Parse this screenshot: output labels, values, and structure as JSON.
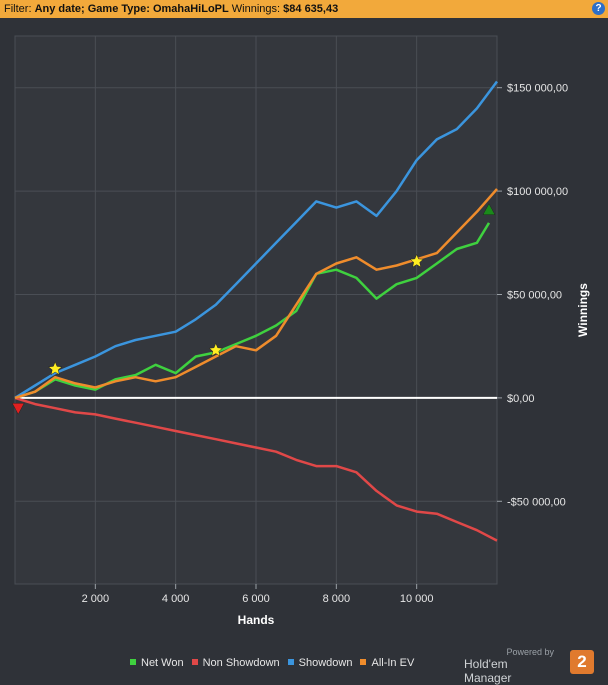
{
  "filter": {
    "label": "Filter:",
    "value": "Any date; Game Type: OmahaHiLoPL",
    "winnings_label": "Winnings:",
    "winnings_value": "$84 635,43"
  },
  "help_glyph": "?",
  "chart_data": {
    "type": "line",
    "xlabel": "Hands",
    "ylabel": "Winnings",
    "xlim": [
      0,
      12000
    ],
    "ylim": [
      -90000,
      175000
    ],
    "x_ticks": [
      2000,
      4000,
      6000,
      8000,
      10000
    ],
    "x_tick_labels": [
      "2 000",
      "4 000",
      "6 000",
      "8 000",
      "10 000"
    ],
    "y_ticks": [
      -50000,
      0,
      50000,
      100000,
      150000
    ],
    "y_tick_labels": [
      "-$50 000,00",
      "$0,00",
      "$50 000,00",
      "$100 000,00",
      "$150 000,00"
    ],
    "grid": true,
    "legend_position": "bottom",
    "series": [
      {
        "name": "Net Won",
        "color": "#3fd13f",
        "x": [
          0,
          500,
          1000,
          1500,
          2000,
          2500,
          3000,
          3500,
          4000,
          4500,
          5000,
          5500,
          6000,
          6500,
          7000,
          7500,
          8000,
          8500,
          9000,
          9500,
          10000,
          10500,
          11000,
          11500,
          11800
        ],
        "y": [
          0,
          3000,
          9000,
          6000,
          4000,
          9000,
          11000,
          16000,
          12000,
          20000,
          22000,
          26000,
          30000,
          35000,
          42000,
          60000,
          62000,
          58000,
          48000,
          55000,
          58000,
          65000,
          72000,
          75000,
          84635
        ]
      },
      {
        "name": "Non Showdown",
        "color": "#e04848",
        "x": [
          0,
          500,
          1000,
          1500,
          2000,
          2500,
          3000,
          3500,
          4000,
          4500,
          5000,
          5500,
          6000,
          6500,
          7000,
          7500,
          8000,
          8500,
          9000,
          9500,
          10000,
          10500,
          11000,
          11500,
          12000
        ],
        "y": [
          0,
          -3000,
          -5000,
          -7000,
          -8000,
          -10000,
          -12000,
          -14000,
          -16000,
          -18000,
          -20000,
          -22000,
          -24000,
          -26000,
          -30000,
          -33000,
          -33000,
          -36000,
          -45000,
          -52000,
          -55000,
          -56000,
          -60000,
          -64000,
          -69000
        ]
      },
      {
        "name": "Showdown",
        "color": "#3b95de",
        "x": [
          0,
          500,
          1000,
          1500,
          2000,
          2500,
          3000,
          3500,
          4000,
          4500,
          5000,
          5500,
          6000,
          6500,
          7000,
          7500,
          8000,
          8500,
          9000,
          9500,
          10000,
          10500,
          11000,
          11500,
          12000
        ],
        "y": [
          0,
          6000,
          12000,
          16000,
          20000,
          25000,
          28000,
          30000,
          32000,
          38000,
          45000,
          55000,
          65000,
          75000,
          85000,
          95000,
          92000,
          95000,
          88000,
          100000,
          115000,
          125000,
          130000,
          140000,
          153000
        ]
      },
      {
        "name": "All-In EV",
        "color": "#ef8c2c",
        "x": [
          0,
          500,
          1000,
          1500,
          2000,
          2500,
          3000,
          3500,
          4000,
          4500,
          5000,
          5500,
          6000,
          6500,
          7000,
          7500,
          8000,
          8500,
          9000,
          9500,
          10000,
          10500,
          11000,
          11500,
          12000
        ],
        "y": [
          0,
          3000,
          10000,
          7000,
          5000,
          8000,
          10000,
          8000,
          10000,
          15000,
          20000,
          25000,
          23000,
          30000,
          45000,
          60000,
          65000,
          68000,
          62000,
          64000,
          67000,
          70000,
          80000,
          90000,
          101000
        ]
      }
    ],
    "markers": [
      {
        "kind": "star",
        "color": "#ffee22",
        "x": 1000,
        "y": 14000
      },
      {
        "kind": "star",
        "color": "#ffee22",
        "x": 5000,
        "y": 23000
      },
      {
        "kind": "star",
        "color": "#ffee22",
        "x": 10000,
        "y": 66000
      },
      {
        "kind": "triangle-down",
        "color": "#e02020",
        "x": 80,
        "y": -5000
      },
      {
        "kind": "triangle-up",
        "color": "#1a8a1a",
        "x": 11800,
        "y": 91000
      }
    ]
  },
  "branding": {
    "powered_by": "Powered by",
    "product": "Hold'em Manager",
    "logo_digit": "2",
    "logo_color": "#e07a2e"
  }
}
